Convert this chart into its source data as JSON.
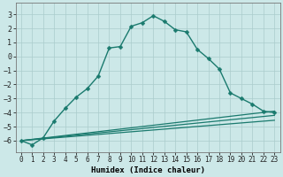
{
  "xlabel": "Humidex (Indice chaleur)",
  "xlim": [
    -0.5,
    23.5
  ],
  "ylim": [
    -6.8,
    3.8
  ],
  "yticks": [
    3,
    2,
    1,
    0,
    -1,
    -2,
    -3,
    -4,
    -5,
    -6
  ],
  "xticks": [
    0,
    1,
    2,
    3,
    4,
    5,
    6,
    7,
    8,
    9,
    10,
    11,
    12,
    13,
    14,
    15,
    16,
    17,
    18,
    19,
    20,
    21,
    22,
    23
  ],
  "background_color": "#cce8e8",
  "grid_color": "#aacccc",
  "line_color": "#1a7a6e",
  "series": [
    {
      "x": [
        0,
        1,
        2,
        3,
        4,
        5,
        6,
        7,
        8,
        9,
        10,
        11,
        12,
        13,
        14,
        15,
        16,
        17,
        18,
        19,
        20,
        21,
        22,
        23
      ],
      "y": [
        -6.0,
        -6.3,
        -5.8,
        -4.6,
        -3.7,
        -2.9,
        -2.3,
        -1.4,
        0.6,
        0.7,
        2.15,
        2.4,
        2.9,
        2.5,
        1.9,
        1.75,
        0.5,
        -0.15,
        -0.9,
        -2.6,
        -3.0,
        -3.4,
        -3.9,
        -4.0
      ],
      "marker": "D",
      "markersize": 2.5,
      "linewidth": 1.0,
      "has_marker": true
    },
    {
      "x": [
        0,
        23
      ],
      "y": [
        -6.0,
        -3.9
      ],
      "linewidth": 0.9,
      "has_marker": false
    },
    {
      "x": [
        0,
        23
      ],
      "y": [
        -6.0,
        -4.2
      ],
      "linewidth": 0.9,
      "has_marker": false
    },
    {
      "x": [
        0,
        23
      ],
      "y": [
        -6.0,
        -4.55
      ],
      "linewidth": 0.9,
      "has_marker": false
    }
  ]
}
